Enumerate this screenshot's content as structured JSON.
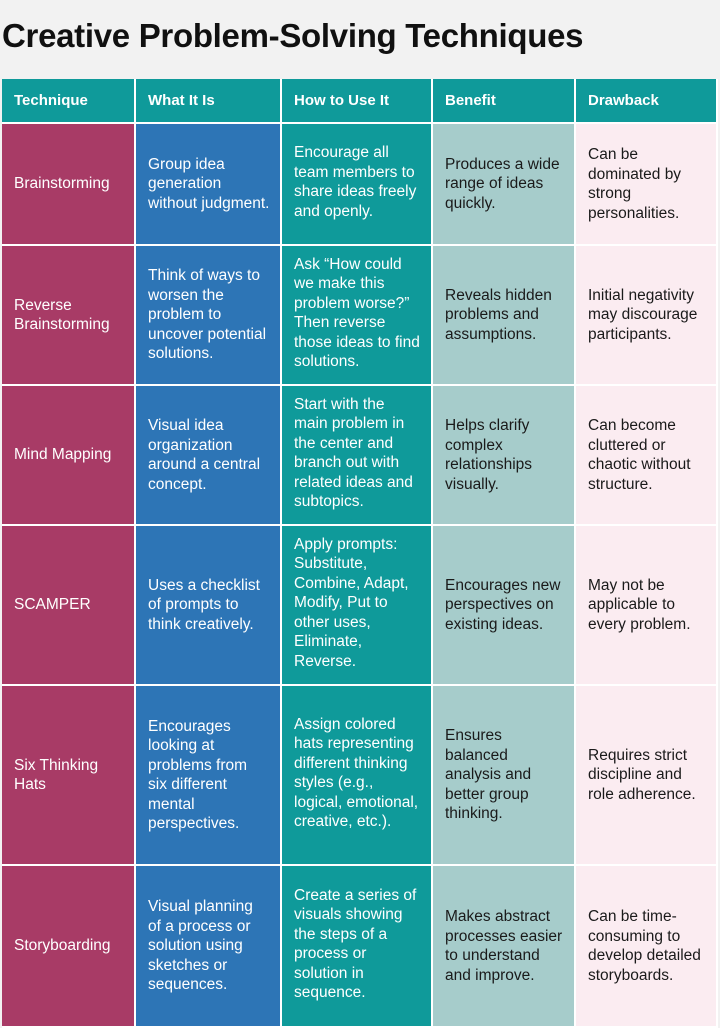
{
  "title": "Creative Problem-Solving Techniques",
  "columns": [
    "Technique",
    "What It Is",
    "How to Use It",
    "Benefit",
    "Drawback"
  ],
  "rows": [
    {
      "technique": "Brainstorming",
      "what": "Group idea generation without judgment.",
      "how": "Encourage all team members to share ideas freely and openly.",
      "benefit": "Produces a wide range of ideas quickly.",
      "drawback": "Can be dominated by strong personalities."
    },
    {
      "technique": "Reverse Brainstorming",
      "what": "Think of ways to worsen the problem to uncover potential solutions.",
      "how": "Ask “How could we make this problem worse?” Then reverse those ideas to find solutions.",
      "benefit": "Reveals hidden problems and assumptions.",
      "drawback": "Initial negativity may discourage participants."
    },
    {
      "technique": "Mind Mapping",
      "what": "Visual idea organization around a central concept.",
      "how": "Start with the main problem in the center and branch out with related ideas and subtopics.",
      "benefit": "Helps clarify complex relationships visually.",
      "drawback": "Can become cluttered or chaotic without structure."
    },
    {
      "technique": "SCAMPER",
      "what": "Uses a checklist of prompts to think creatively.",
      "how": "Apply prompts: Substitute, Combine, Adapt, Modify, Put to other uses, Eliminate, Reverse.",
      "benefit": "Encourages new perspectives on existing ideas.",
      "drawback": "May not be applicable to every problem."
    },
    {
      "technique": "Six Thinking Hats",
      "what": "Encourages looking at problems from six different mental perspectives.",
      "how": "Assign colored hats representing different thinking styles (e.g., logical, emotional, creative, etc.).",
      "benefit": "Ensures balanced analysis and better group thinking.",
      "drawback": "Requires strict discipline and role adherence."
    },
    {
      "technique": "Storyboarding",
      "what": "Visual planning of a process or solution using sketches or sequences.",
      "how": "Create a series of visuals showing the steps of a process or solution in sequence.",
      "benefit": "Makes abstract processes easier to understand and improve.",
      "drawback": "Can be time-consuming to develop detailed storyboards."
    }
  ]
}
